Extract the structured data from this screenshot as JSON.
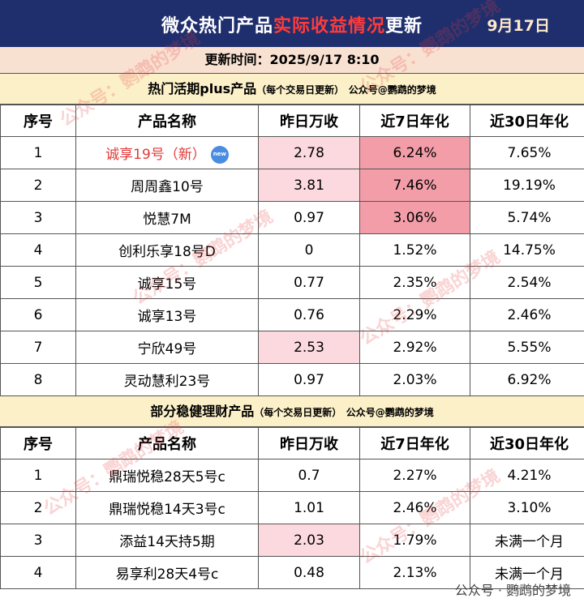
{
  "header": {
    "title_pre": "微众热门产品",
    "title_hl": "实际收益情况",
    "title_post": "更新",
    "date": "9月17日"
  },
  "update_time": "更新时间：2025/9/17 8:10",
  "columns": [
    "序号",
    "产品名称",
    "昨日万收",
    "近7日年化",
    "近30日年化"
  ],
  "section1": {
    "title": "热门活期plus产品",
    "note": "（每个交易日更新）",
    "source": "公众号@鹦鹉的梦境",
    "new_badge": "new",
    "rows": [
      {
        "no": "1",
        "name": "诚享19号（新）",
        "wan": "2.78",
        "d7": "6.24%",
        "d30": "7.65%"
      },
      {
        "no": "2",
        "name": "周周鑫10号",
        "wan": "3.81",
        "d7": "7.46%",
        "d30": "19.19%"
      },
      {
        "no": "3",
        "name": "悦慧7M",
        "wan": "0.97",
        "d7": "3.06%",
        "d30": "5.74%"
      },
      {
        "no": "4",
        "name": "创利乐享18号D",
        "wan": "0",
        "d7": "1.52%",
        "d30": "14.75%"
      },
      {
        "no": "5",
        "name": "诚享15号",
        "wan": "0.77",
        "d7": "2.35%",
        "d30": "2.54%"
      },
      {
        "no": "6",
        "name": "诚享13号",
        "wan": "0.76",
        "d7": "2.29%",
        "d30": "2.46%"
      },
      {
        "no": "7",
        "name": "宁欣49号",
        "wan": "2.53",
        "d7": "2.92%",
        "d30": "5.55%"
      },
      {
        "no": "8",
        "name": "灵动慧利23号",
        "wan": "0.97",
        "d7": "2.03%",
        "d30": "6.92%"
      }
    ]
  },
  "section2": {
    "title": "部分稳健理财产品",
    "note": "（每个交易日更新）",
    "source": "公众号@鹦鹉的梦境",
    "rows": [
      {
        "no": "1",
        "name": "鼎瑞悦稳28天5号c",
        "wan": "0.7",
        "d7": "2.27%",
        "d30": "4.21%"
      },
      {
        "no": "2",
        "name": "鼎瑞悦稳14天3号c",
        "wan": "1.01",
        "d7": "2.46%",
        "d30": "3.10%"
      },
      {
        "no": "3",
        "name": "添益14天持5期",
        "wan": "2.03",
        "d7": "1.79%",
        "d30": "未满一个月"
      },
      {
        "no": "4",
        "name": "易享利28天4号c",
        "wan": "0.48",
        "d7": "2.13%",
        "d30": "未满一个月"
      }
    ]
  },
  "watermark": "公众号：鹦鹉的梦境",
  "footer_watermark": "公众号 · 鹦鹉的梦境"
}
